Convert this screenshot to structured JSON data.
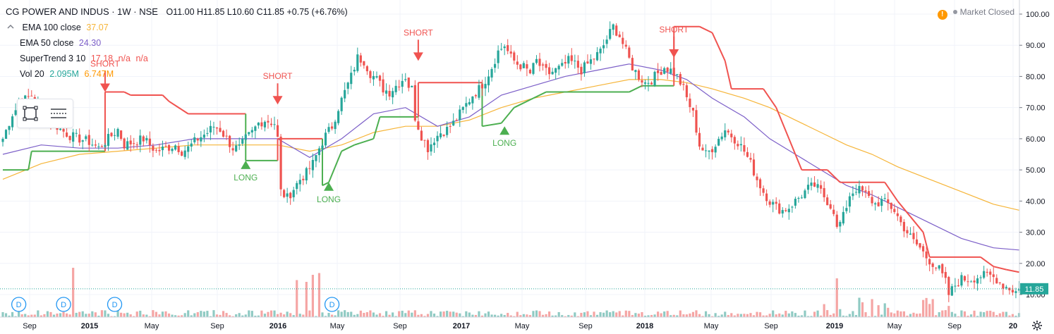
{
  "symbol": {
    "title": "CG POWER AND INDUS · 1W · NSE",
    "open": "O11.00",
    "high": "H11.85",
    "low": "L10.60",
    "close": "C11.85",
    "change": "+0.75 (+6.76%)"
  },
  "indicators": [
    {
      "name": "EMA 100 close",
      "value": "37.07",
      "color": "#f6b539"
    },
    {
      "name": "EMA 50 close",
      "value": "24.30",
      "color": "#7c5fc8"
    },
    {
      "name": "SuperTrend 3 10",
      "value": "17.18",
      "extra1": "n/a",
      "extra2": "n/a",
      "color": "#f05350"
    },
    {
      "name": "Vol 20",
      "value": "2.095M",
      "value2": "6.747M",
      "color": "#26a69a",
      "color2": "#ff9800"
    }
  ],
  "market_status": "Market Closed",
  "last_price_label": "11.85",
  "colors": {
    "up": "#26a69a",
    "down": "#ef5350",
    "ema100": "#f6b539",
    "ema50": "#7c5fc8",
    "st_up": "#4caf50",
    "st_down": "#f05350",
    "vol_up": "#8fcac3",
    "vol_down": "#f5a5a4",
    "grid": "#f0f3fa"
  },
  "chart_data": {
    "type": "candlestick",
    "ylim": [
      0,
      103
    ],
    "y_ticks": [
      "10.00",
      "20.00",
      "30.00",
      "40.00",
      "50.00",
      "60.00",
      "70.00",
      "80.00",
      "90.00",
      "100.00"
    ],
    "x_ticks": [
      "Sep",
      "2015",
      "May",
      "Sep",
      "2016",
      "May",
      "Sep",
      "2017",
      "May",
      "Sep",
      "2018",
      "May",
      "Sep",
      "2019",
      "May",
      "Sep",
      "20"
    ],
    "close_path": [
      [
        0,
        60
      ],
      [
        3,
        68
      ],
      [
        6,
        72
      ],
      [
        9,
        74
      ],
      [
        12,
        70
      ],
      [
        15,
        66
      ],
      [
        18,
        63
      ],
      [
        21,
        61
      ],
      [
        24,
        60
      ],
      [
        27,
        59
      ],
      [
        30,
        57
      ],
      [
        33,
        60
      ],
      [
        36,
        63
      ],
      [
        38,
        58
      ],
      [
        41,
        59
      ],
      [
        44,
        60
      ],
      [
        46,
        58
      ],
      [
        48,
        56
      ],
      [
        51,
        57
      ],
      [
        54,
        58
      ],
      [
        56,
        56
      ],
      [
        58,
        57
      ],
      [
        61,
        60
      ],
      [
        64,
        62
      ],
      [
        66,
        64
      ],
      [
        68,
        63
      ],
      [
        70,
        60
      ],
      [
        72,
        57
      ],
      [
        74,
        57
      ],
      [
        76,
        60
      ],
      [
        78,
        62
      ],
      [
        80,
        65
      ],
      [
        82,
        66
      ],
      [
        85,
        65
      ],
      [
        86,
        60
      ],
      [
        87,
        43
      ],
      [
        89,
        41
      ],
      [
        91,
        44
      ],
      [
        93,
        47
      ],
      [
        95,
        49
      ],
      [
        97,
        52
      ],
      [
        99,
        57
      ],
      [
        101,
        61
      ],
      [
        103,
        64
      ],
      [
        105,
        70
      ],
      [
        107,
        75
      ],
      [
        109,
        80
      ],
      [
        111,
        86
      ],
      [
        113,
        85
      ],
      [
        115,
        81
      ],
      [
        117,
        79
      ],
      [
        119,
        76
      ],
      [
        121,
        75
      ],
      [
        123,
        77
      ],
      [
        125,
        79
      ],
      [
        126,
        80
      ],
      [
        127,
        77
      ],
      [
        128,
        76
      ],
      [
        129,
        67
      ],
      [
        131,
        61
      ],
      [
        133,
        57
      ],
      [
        135,
        60
      ],
      [
        137,
        62
      ],
      [
        139,
        63
      ],
      [
        141,
        65
      ],
      [
        143,
        68
      ],
      [
        145,
        71
      ],
      [
        147,
        74
      ],
      [
        149,
        76
      ],
      [
        151,
        79
      ],
      [
        153,
        83
      ],
      [
        155,
        88
      ],
      [
        157,
        90
      ],
      [
        159,
        86
      ],
      [
        161,
        84
      ],
      [
        163,
        83
      ],
      [
        165,
        81
      ],
      [
        167,
        85
      ],
      [
        169,
        82
      ],
      [
        171,
        81
      ],
      [
        173,
        82
      ],
      [
        175,
        83
      ],
      [
        177,
        85
      ],
      [
        179,
        84
      ],
      [
        181,
        82
      ],
      [
        183,
        84
      ],
      [
        185,
        86
      ],
      [
        187,
        88
      ],
      [
        189,
        92
      ],
      [
        191,
        96
      ],
      [
        193,
        93
      ],
      [
        195,
        88
      ],
      [
        197,
        83
      ],
      [
        199,
        80
      ],
      [
        201,
        78
      ],
      [
        203,
        79
      ],
      [
        205,
        81
      ],
      [
        207,
        83
      ],
      [
        209,
        82
      ],
      [
        211,
        80
      ],
      [
        213,
        76
      ],
      [
        214,
        73
      ],
      [
        216,
        68
      ],
      [
        218,
        58
      ],
      [
        220,
        55
      ],
      [
        222,
        57
      ],
      [
        224,
        60
      ],
      [
        226,
        63
      ],
      [
        228,
        61
      ],
      [
        230,
        59
      ],
      [
        232,
        56
      ],
      [
        234,
        52
      ],
      [
        236,
        47
      ],
      [
        238,
        43
      ],
      [
        240,
        40
      ],
      [
        242,
        38
      ],
      [
        244,
        37
      ],
      [
        246,
        38
      ],
      [
        248,
        40
      ],
      [
        250,
        42
      ],
      [
        252,
        44
      ],
      [
        254,
        45
      ],
      [
        256,
        43
      ],
      [
        258,
        40
      ],
      [
        260,
        37
      ],
      [
        261,
        31
      ],
      [
        263,
        35
      ],
      [
        265,
        42
      ],
      [
        267,
        44
      ],
      [
        269,
        43
      ],
      [
        271,
        41
      ],
      [
        273,
        39
      ],
      [
        275,
        40
      ],
      [
        277,
        39
      ],
      [
        279,
        37
      ],
      [
        281,
        33
      ],
      [
        283,
        30
      ],
      [
        285,
        27
      ],
      [
        287,
        25
      ],
      [
        289,
        22
      ],
      [
        291,
        20
      ],
      [
        293,
        18
      ],
      [
        295,
        14
      ],
      [
        296,
        10
      ],
      [
        298,
        13
      ],
      [
        300,
        15
      ],
      [
        303,
        15
      ],
      [
        306,
        16
      ],
      [
        309,
        16
      ],
      [
        311,
        15
      ],
      [
        313,
        13
      ],
      [
        315,
        12
      ],
      [
        317,
        11
      ],
      [
        318,
        11.85
      ]
    ],
    "ema50_path": [
      [
        0,
        55
      ],
      [
        12,
        58
      ],
      [
        24,
        57
      ],
      [
        36,
        57
      ],
      [
        48,
        58
      ],
      [
        60,
        60
      ],
      [
        72,
        60
      ],
      [
        86,
        60
      ],
      [
        96,
        54
      ],
      [
        106,
        60
      ],
      [
        116,
        68
      ],
      [
        126,
        70
      ],
      [
        136,
        64
      ],
      [
        146,
        67
      ],
      [
        156,
        74
      ],
      [
        166,
        77
      ],
      [
        176,
        80
      ],
      [
        186,
        82
      ],
      [
        196,
        84
      ],
      [
        206,
        82
      ],
      [
        214,
        79
      ],
      [
        222,
        73
      ],
      [
        232,
        67
      ],
      [
        240,
        60
      ],
      [
        248,
        55
      ],
      [
        256,
        50
      ],
      [
        264,
        45
      ],
      [
        272,
        42
      ],
      [
        280,
        38
      ],
      [
        290,
        33
      ],
      [
        300,
        28
      ],
      [
        310,
        25
      ],
      [
        318,
        24.3
      ]
    ],
    "ema100_path": [
      [
        0,
        47
      ],
      [
        12,
        52
      ],
      [
        24,
        55
      ],
      [
        36,
        56
      ],
      [
        48,
        57
      ],
      [
        60,
        58
      ],
      [
        72,
        58
      ],
      [
        86,
        58
      ],
      [
        96,
        56
      ],
      [
        106,
        58
      ],
      [
        116,
        62
      ],
      [
        126,
        64
      ],
      [
        136,
        64
      ],
      [
        146,
        66
      ],
      [
        156,
        70
      ],
      [
        166,
        73
      ],
      [
        176,
        75
      ],
      [
        186,
        77
      ],
      [
        196,
        79
      ],
      [
        206,
        79
      ],
      [
        214,
        78
      ],
      [
        222,
        76
      ],
      [
        232,
        73
      ],
      [
        240,
        70
      ],
      [
        248,
        66
      ],
      [
        256,
        62
      ],
      [
        264,
        58
      ],
      [
        272,
        55
      ],
      [
        280,
        51
      ],
      [
        290,
        47
      ],
      [
        300,
        43
      ],
      [
        310,
        39
      ],
      [
        318,
        37.07
      ]
    ],
    "supertrend_path": [
      [
        0,
        50
      ],
      [
        8,
        50
      ],
      [
        9,
        56
      ],
      [
        32,
        56
      ],
      [
        32,
        75
      ],
      [
        38,
        75
      ],
      [
        40,
        74
      ],
      [
        50,
        74
      ],
      [
        52,
        72
      ],
      [
        58,
        68
      ],
      [
        76,
        68
      ],
      [
        76,
        53
      ],
      [
        86,
        53
      ],
      [
        86,
        60
      ],
      [
        100,
        60
      ],
      [
        100,
        45
      ],
      [
        102,
        46
      ],
      [
        106,
        56
      ],
      [
        110,
        58
      ],
      [
        116,
        60
      ],
      [
        118,
        67
      ],
      [
        130,
        67
      ],
      [
        130,
        78
      ],
      [
        150,
        78
      ],
      [
        150,
        64
      ],
      [
        156,
        65
      ],
      [
        160,
        70
      ],
      [
        166,
        73
      ],
      [
        170,
        75
      ],
      [
        196,
        75
      ],
      [
        200,
        77
      ],
      [
        210,
        77
      ],
      [
        210,
        96
      ],
      [
        218,
        96
      ],
      [
        222,
        94
      ],
      [
        226,
        85
      ],
      [
        228,
        76
      ],
      [
        238,
        76
      ],
      [
        242,
        70
      ],
      [
        246,
        60
      ],
      [
        248,
        55
      ],
      [
        250,
        50
      ],
      [
        258,
        50
      ],
      [
        262,
        46
      ],
      [
        276,
        46
      ],
      [
        280,
        40
      ],
      [
        284,
        35
      ],
      [
        288,
        30
      ],
      [
        290,
        22
      ],
      [
        306,
        22
      ],
      [
        310,
        19
      ],
      [
        314,
        18
      ],
      [
        318,
        17.18
      ]
    ],
    "supertrend_up_segments": [
      [
        0,
        31
      ],
      [
        76,
        85
      ],
      [
        100,
        129
      ],
      [
        150,
        209
      ]
    ],
    "signals": [
      {
        "type": "SHORT",
        "i": 32,
        "y": 75
      },
      {
        "type": "LONG",
        "i": 76,
        "y": 53
      },
      {
        "type": "SHORT",
        "i": 86,
        "y": 71
      },
      {
        "type": "LONG",
        "i": 102,
        "y": 46
      },
      {
        "type": "SHORT",
        "i": 130,
        "y": 85
      },
      {
        "type": "LONG",
        "i": 157,
        "y": 64
      },
      {
        "type": "SHORT",
        "i": 210,
        "y": 86
      }
    ],
    "dividends": [
      {
        "i": 5
      },
      {
        "i": 19
      },
      {
        "i": 35
      },
      {
        "i": 103
      }
    ],
    "volume_spikes": [
      {
        "i": 22,
        "v": 28,
        "dir": "down"
      },
      {
        "i": 92,
        "v": 21,
        "dir": "down"
      },
      {
        "i": 95,
        "v": 20,
        "dir": "down"
      },
      {
        "i": 97,
        "v": 24,
        "dir": "down"
      },
      {
        "i": 99,
        "v": 25,
        "dir": "down"
      },
      {
        "i": 261,
        "v": 22,
        "dir": "down"
      }
    ]
  }
}
